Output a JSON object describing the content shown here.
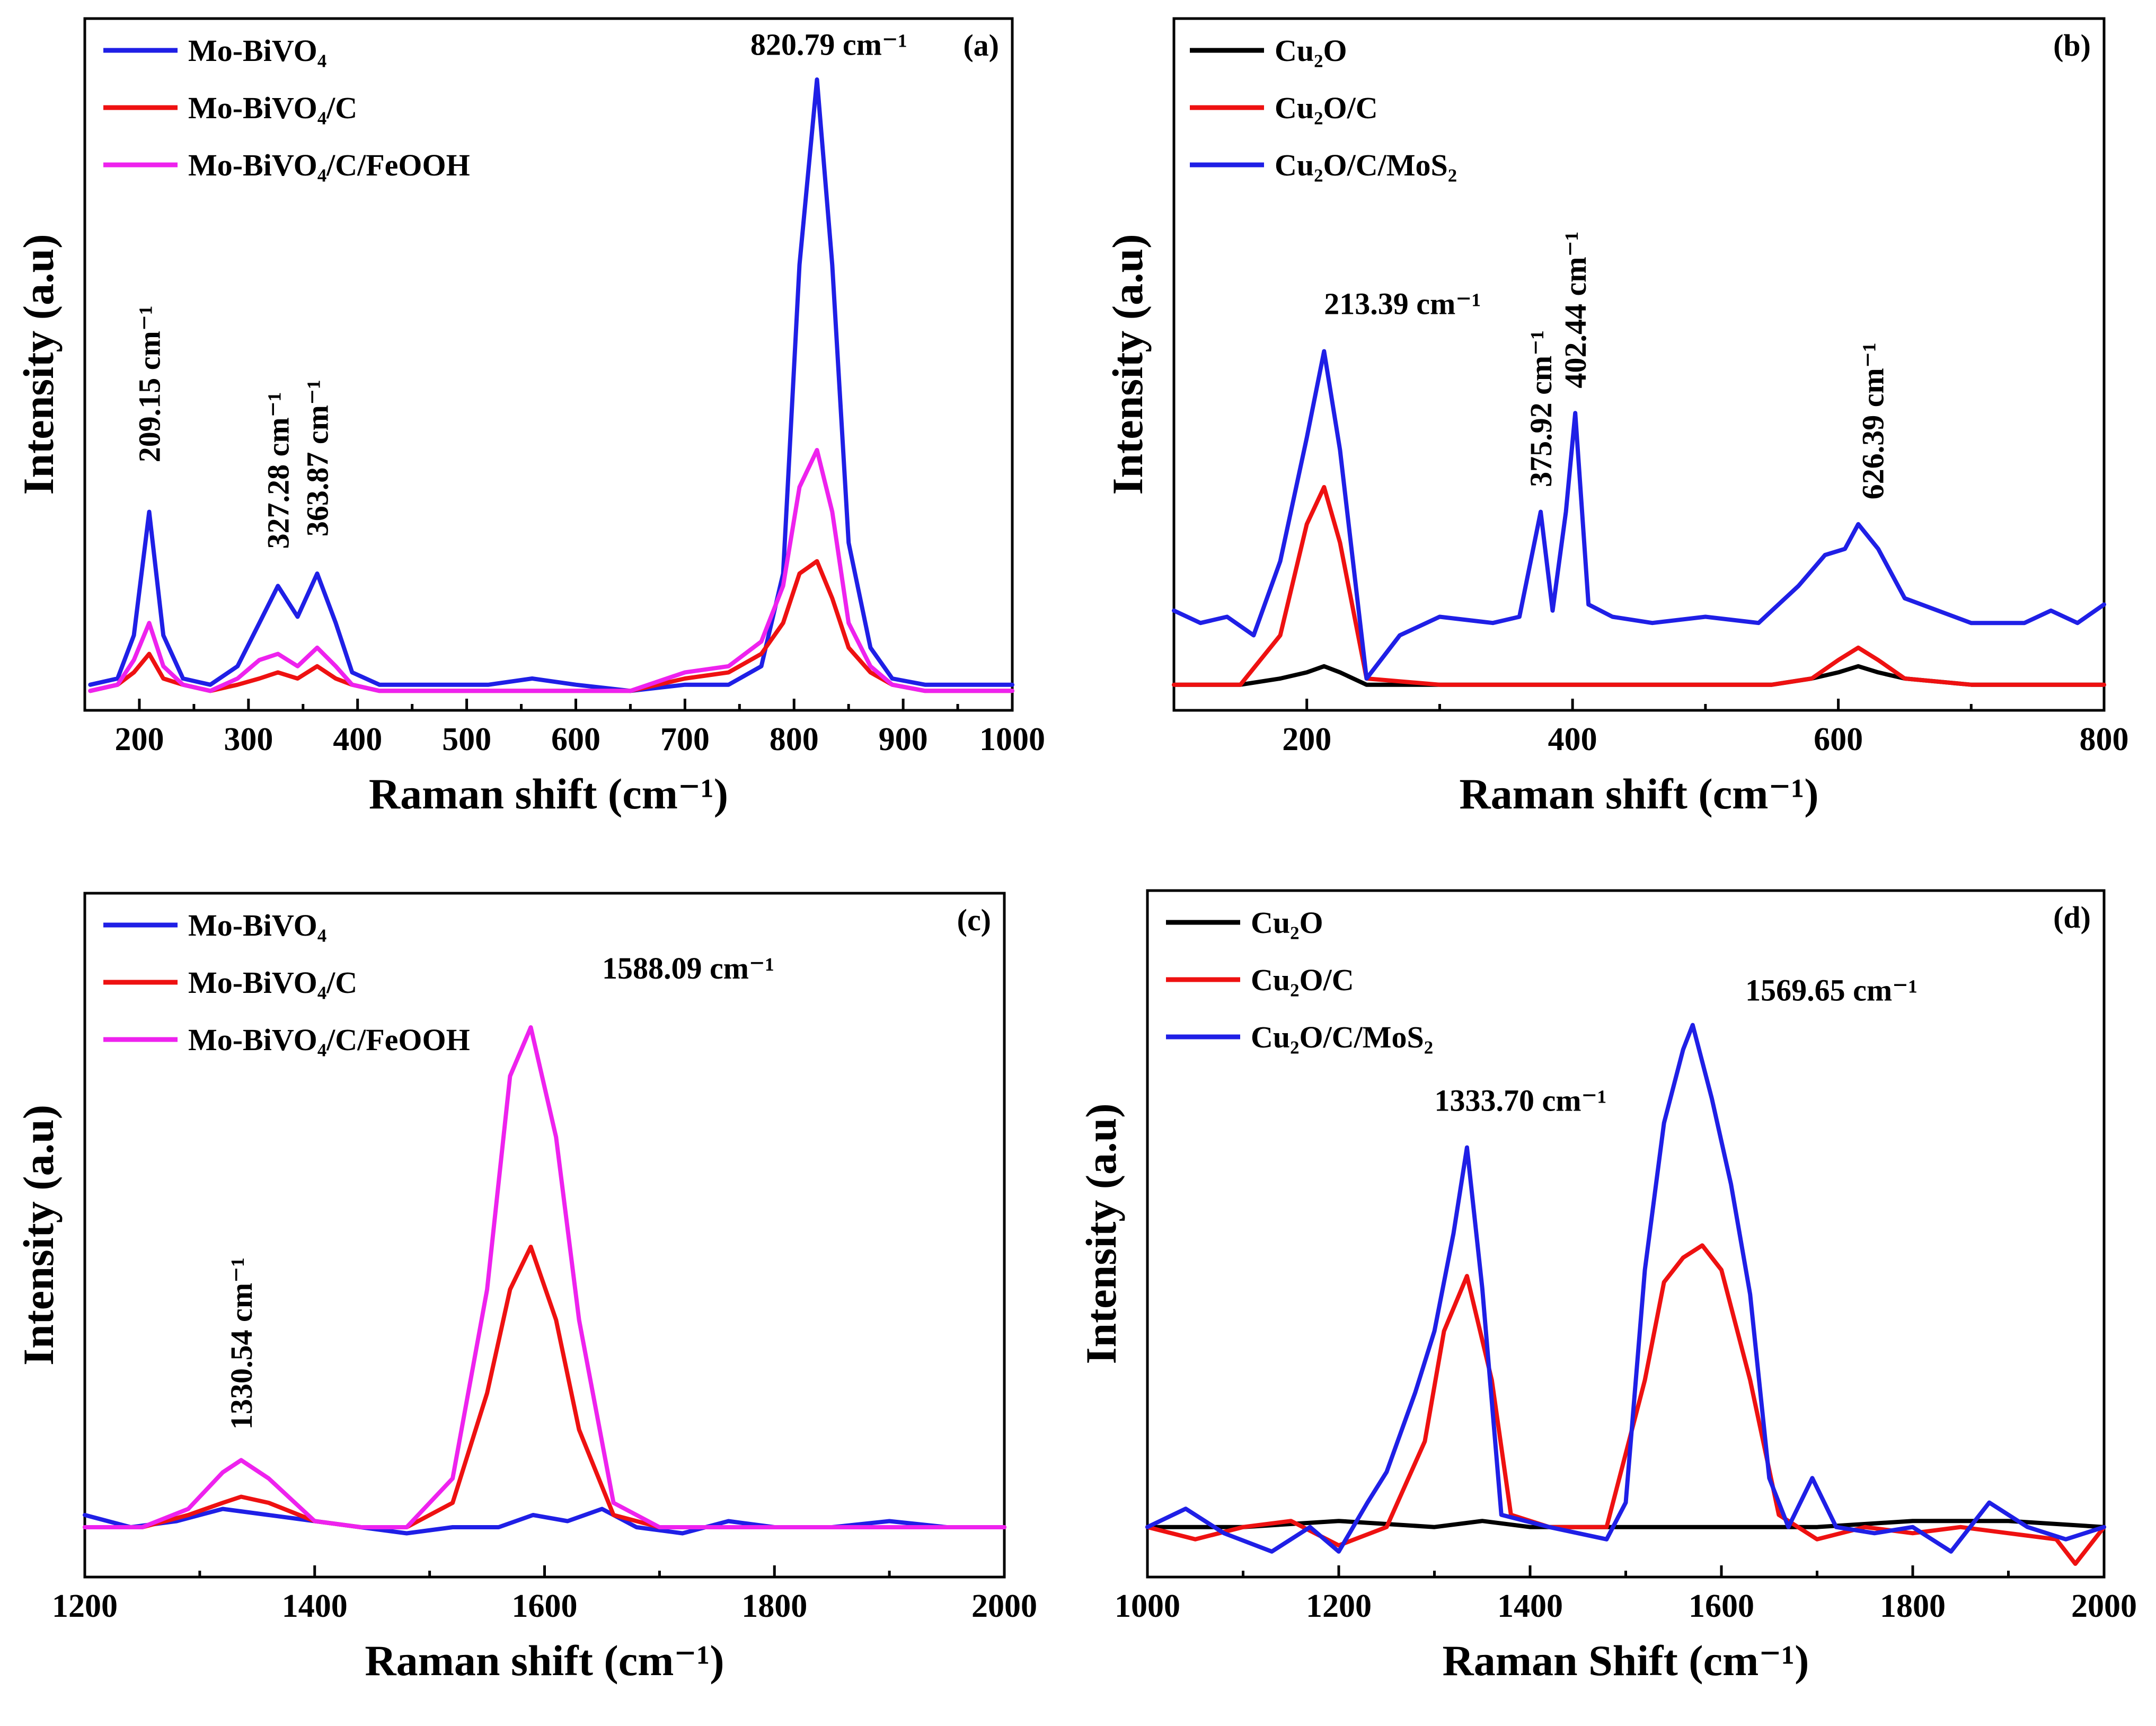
{
  "chart_data": [
    {
      "type": "line",
      "tag": "(a)",
      "xlabel": "Raman shift (cm⁻¹)",
      "ylabel": "Intensity (a.u)",
      "xlim": [
        150,
        1000
      ],
      "ylim": [
        0,
        100
      ],
      "xticks": [
        200,
        300,
        400,
        500,
        600,
        700,
        800,
        900,
        1000
      ],
      "legend_position": "top-left",
      "series": [
        {
          "name": "Mo-BiVO₄",
          "color": "#1f1fe6",
          "x": [
            155,
            180,
            195,
            209,
            222,
            240,
            265,
            290,
            310,
            327,
            345,
            363,
            380,
            395,
            420,
            470,
            520,
            560,
            600,
            650,
            700,
            740,
            770,
            790,
            805,
            821,
            835,
            850,
            870,
            890,
            920,
            960,
            1000
          ],
          "y": [
            2,
            3,
            10,
            30,
            10,
            3,
            2,
            5,
            12,
            18,
            13,
            20,
            12,
            4,
            2,
            2,
            2,
            3,
            2,
            1,
            2,
            2,
            5,
            20,
            70,
            100,
            70,
            25,
            8,
            3,
            2,
            2,
            2
          ]
        },
        {
          "name": "Mo-BiVO₄/C",
          "color": "#ee1111",
          "x": [
            155,
            180,
            195,
            209,
            222,
            240,
            265,
            290,
            310,
            327,
            345,
            363,
            380,
            395,
            420,
            470,
            520,
            560,
            600,
            650,
            700,
            740,
            770,
            790,
            805,
            821,
            835,
            850,
            870,
            890,
            920,
            960,
            1000
          ],
          "y": [
            1,
            2,
            4,
            7,
            3,
            2,
            1,
            2,
            3,
            4,
            3,
            5,
            3,
            2,
            1,
            1,
            1,
            1,
            1,
            1,
            3,
            4,
            7,
            12,
            20,
            22,
            16,
            8,
            4,
            2,
            1,
            1,
            1
          ]
        },
        {
          "name": "Mo-BiVO₄/C/FeOOH",
          "color": "#ee22ee",
          "x": [
            155,
            180,
            195,
            209,
            222,
            240,
            265,
            290,
            310,
            327,
            345,
            363,
            380,
            395,
            420,
            470,
            520,
            560,
            600,
            650,
            700,
            740,
            770,
            790,
            805,
            821,
            835,
            850,
            870,
            890,
            920,
            960,
            1000
          ],
          "y": [
            1,
            2,
            6,
            12,
            5,
            2,
            1,
            3,
            6,
            7,
            5,
            8,
            5,
            2,
            1,
            1,
            1,
            1,
            1,
            1,
            4,
            5,
            9,
            18,
            34,
            40,
            30,
            12,
            5,
            2,
            1,
            1,
            1
          ]
        }
      ],
      "annotations": [
        "209.15 cm⁻¹",
        "327.28 cm⁻¹",
        "363.87 cm⁻¹",
        "820.79 cm⁻¹"
      ]
    },
    {
      "type": "line",
      "tag": "(b)",
      "xlabel": "Raman shift (cm⁻¹)",
      "ylabel": "Intensity (a.u)",
      "xlim": [
        100,
        800
      ],
      "ylim": [
        0,
        100
      ],
      "xticks": [
        200,
        400,
        600,
        800
      ],
      "legend_position": "top-left",
      "series": [
        {
          "name": "Cu₂O",
          "color": "#000000",
          "x": [
            100,
            150,
            180,
            200,
            213,
            225,
            245,
            300,
            350,
            400,
            450,
            500,
            550,
            580,
            600,
            615,
            630,
            650,
            700,
            750,
            800
          ],
          "y": [
            2,
            2,
            3,
            4,
            5,
            4,
            2,
            2,
            2,
            2,
            2,
            2,
            2,
            3,
            4,
            5,
            4,
            3,
            2,
            2,
            2
          ]
        },
        {
          "name": "Cu₂O/C",
          "color": "#ee1111",
          "x": [
            100,
            150,
            180,
            200,
            213,
            225,
            245,
            300,
            350,
            400,
            450,
            500,
            550,
            580,
            600,
            615,
            630,
            650,
            700,
            750,
            800
          ],
          "y": [
            2,
            2,
            10,
            28,
            34,
            25,
            3,
            2,
            2,
            2,
            2,
            2,
            2,
            3,
            6,
            8,
            6,
            3,
            2,
            2,
            2
          ]
        },
        {
          "name": "Cu₂O/C/MoS₂",
          "color": "#1f1fe6",
          "x": [
            100,
            120,
            140,
            160,
            180,
            200,
            213,
            225,
            245,
            270,
            300,
            340,
            360,
            376,
            385,
            395,
            402,
            412,
            430,
            460,
            500,
            540,
            570,
            590,
            605,
            615,
            630,
            650,
            700,
            740,
            760,
            780,
            800
          ],
          "y": [
            14,
            12,
            13,
            10,
            22,
            42,
            56,
            40,
            3,
            10,
            13,
            12,
            13,
            30,
            14,
            30,
            46,
            15,
            13,
            12,
            13,
            12,
            18,
            23,
            24,
            28,
            24,
            16,
            12,
            12,
            14,
            12,
            15
          ]
        }
      ],
      "annotations": [
        "213.39 cm⁻¹",
        "375.92 cm⁻¹",
        "402.44 cm⁻¹",
        "626.39 cm⁻¹"
      ]
    },
    {
      "type": "line",
      "tag": "(c)",
      "xlabel": "Raman shift (cm⁻¹)",
      "ylabel": "Intensity (a.u)",
      "xlim": [
        1200,
        2000
      ],
      "ylim": [
        0,
        100
      ],
      "xticks": [
        1200,
        1400,
        1600,
        1800,
        2000
      ],
      "legend_position": "top-left",
      "series": [
        {
          "name": "Mo-BiVO₄",
          "color": "#1f1fe6",
          "x": [
            1200,
            1240,
            1280,
            1320,
            1360,
            1400,
            1440,
            1480,
            1520,
            1560,
            1590,
            1620,
            1650,
            1680,
            1720,
            1760,
            1800,
            1850,
            1900,
            1950,
            2000
          ],
          "y": [
            8,
            6,
            7,
            9,
            8,
            7,
            6,
            5,
            6,
            6,
            8,
            7,
            9,
            6,
            5,
            7,
            6,
            6,
            7,
            6,
            6
          ]
        },
        {
          "name": "Mo-BiVO₄/C",
          "color": "#ee1111",
          "x": [
            1200,
            1250,
            1290,
            1320,
            1336,
            1360,
            1400,
            1440,
            1480,
            1520,
            1550,
            1570,
            1588,
            1610,
            1630,
            1660,
            1700,
            1800,
            1900,
            2000
          ],
          "y": [
            6,
            6,
            8,
            10,
            11,
            10,
            7,
            6,
            6,
            10,
            28,
            45,
            52,
            40,
            22,
            8,
            6,
            6,
            6,
            6
          ]
        },
        {
          "name": "Mo-BiVO₄/C/FeOOH",
          "color": "#ee22ee",
          "x": [
            1200,
            1250,
            1290,
            1320,
            1336,
            1360,
            1400,
            1440,
            1480,
            1520,
            1550,
            1570,
            1588,
            1610,
            1630,
            1660,
            1700,
            1800,
            1900,
            2000
          ],
          "y": [
            6,
            6,
            9,
            15,
            17,
            14,
            7,
            6,
            6,
            14,
            45,
            80,
            88,
            70,
            40,
            10,
            6,
            6,
            6,
            6
          ]
        }
      ],
      "annotations": [
        "1330.54 cm⁻¹",
        "1588.09 cm⁻¹"
      ]
    },
    {
      "type": "line",
      "tag": "(d)",
      "xlabel": "Raman Shift (cm⁻¹)",
      "ylabel": "Intensity (a.u)",
      "xlim": [
        1000,
        2000
      ],
      "ylim": [
        0,
        100
      ],
      "xticks": [
        1000,
        1200,
        1400,
        1600,
        1800,
        2000
      ],
      "legend_position": "top-left",
      "series": [
        {
          "name": "Cu₂O",
          "color": "#000000",
          "x": [
            1000,
            1100,
            1200,
            1300,
            1350,
            1400,
            1500,
            1600,
            1700,
            1800,
            1900,
            2000
          ],
          "y": [
            6,
            6,
            7,
            6,
            7,
            6,
            6,
            6,
            6,
            7,
            7,
            6
          ]
        },
        {
          "name": "Cu₂O/C",
          "color": "#ee1111",
          "x": [
            1000,
            1050,
            1100,
            1150,
            1200,
            1250,
            1290,
            1310,
            1334,
            1360,
            1380,
            1420,
            1480,
            1520,
            1540,
            1560,
            1580,
            1600,
            1630,
            1660,
            1700,
            1750,
            1800,
            1850,
            1900,
            1950,
            1970,
            2000
          ],
          "y": [
            6,
            4,
            6,
            7,
            3,
            6,
            20,
            38,
            47,
            30,
            8,
            6,
            6,
            30,
            46,
            50,
            52,
            48,
            30,
            8,
            4,
            6,
            5,
            6,
            5,
            4,
            0,
            6
          ]
        },
        {
          "name": "Cu₂O/C/MoS₂",
          "color": "#1f1fe6",
          "x": [
            1000,
            1040,
            1080,
            1130,
            1170,
            1200,
            1230,
            1250,
            1280,
            1300,
            1320,
            1334,
            1350,
            1370,
            1420,
            1480,
            1500,
            1520,
            1540,
            1560,
            1570,
            1590,
            1610,
            1630,
            1650,
            1670,
            1695,
            1720,
            1760,
            1800,
            1840,
            1880,
            1920,
            1960,
            2000
          ],
          "y": [
            6,
            9,
            5,
            2,
            6,
            2,
            10,
            15,
            28,
            38,
            54,
            68,
            45,
            8,
            6,
            4,
            10,
            48,
            72,
            84,
            88,
            76,
            62,
            44,
            14,
            6,
            14,
            6,
            5,
            6,
            2,
            10,
            6,
            4,
            6
          ]
        }
      ],
      "annotations": [
        "1333.70 cm⁻¹",
        "1569.65 cm⁻¹"
      ]
    }
  ]
}
